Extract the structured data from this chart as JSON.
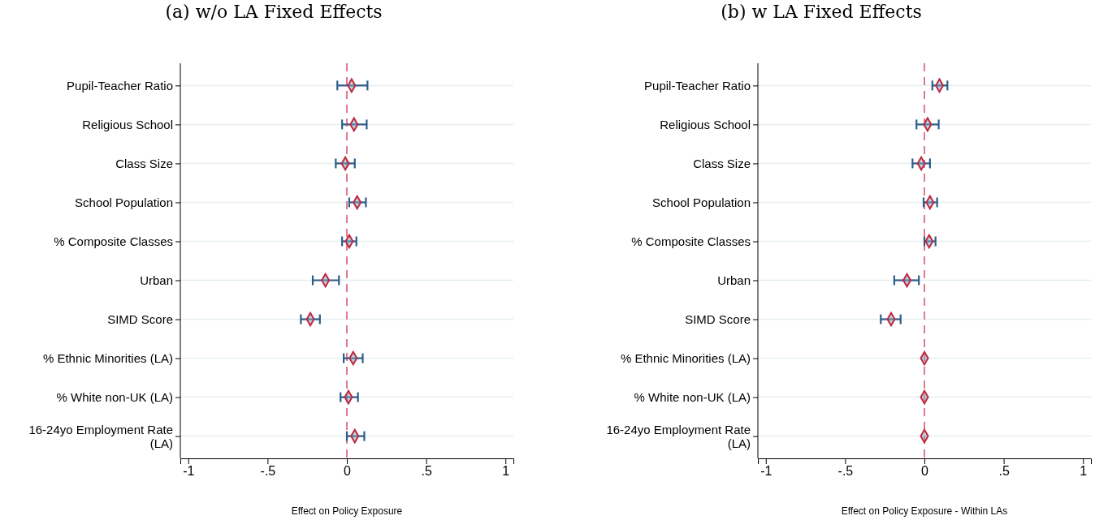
{
  "chart_data": [
    {
      "type": "scatter",
      "orientation": "horizontal",
      "title": "(a) w/o LA Fixed Effects",
      "xlabel": "Effect on Policy Exposure",
      "categories": [
        "Pupil-Teacher Ratio",
        "Religious School",
        "Class Size",
        "School Population",
        "% Composite Classes",
        "Urban",
        "SIMD Score",
        "% Ethnic Minorities (LA)",
        "% White non-UK (LA)",
        "16-24yo Employment Rate (LA)"
      ],
      "values": [
        0.03,
        0.045,
        -0.01,
        0.065,
        0.015,
        -0.135,
        -0.23,
        0.04,
        0.01,
        0.05
      ],
      "errors": [
        [
          -0.06,
          0.13
        ],
        [
          -0.03,
          0.125
        ],
        [
          -0.07,
          0.05
        ],
        [
          0.015,
          0.12
        ],
        [
          -0.03,
          0.06
        ],
        [
          -0.215,
          -0.05
        ],
        [
          -0.29,
          -0.17
        ],
        [
          -0.02,
          0.1
        ],
        [
          -0.04,
          0.07
        ],
        [
          0,
          0.11
        ]
      ],
      "color": "#c0283c",
      "marker": "diamond",
      "grid": "y",
      "xlim": [
        -1.05,
        1.05
      ],
      "xticks": [
        {
          "value": -1,
          "label": "-1"
        },
        {
          "value": -0.5,
          "label": "-.5"
        },
        {
          "value": 0,
          "label": "0"
        },
        {
          "value": 0.5,
          "label": ".5"
        },
        {
          "value": 1,
          "label": "1"
        }
      ],
      "ref_lines": [
        {
          "axis": "x",
          "value": 0,
          "color": "#e07a92",
          "line_style": "dashed"
        }
      ]
    },
    {
      "type": "scatter",
      "orientation": "horizontal",
      "title": "(b) w LA Fixed Effects",
      "xlabel": "Effect on Policy Exposure - Within LAs",
      "categories": [
        "Pupil-Teacher Ratio",
        "Religious School",
        "Class Size",
        "School Population",
        "% Composite Classes",
        "Urban",
        "SIMD Score",
        "% Ethnic Minorities (LA)",
        "% White non-UK (LA)",
        "16-24yo Employment Rate (LA)"
      ],
      "values": [
        0.095,
        0.02,
        -0.02,
        0.035,
        0.03,
        -0.11,
        -0.21,
        0,
        0,
        0
      ],
      "errors": [
        [
          0.05,
          0.145
        ],
        [
          -0.05,
          0.09
        ],
        [
          -0.075,
          0.035
        ],
        [
          -0.005,
          0.08
        ],
        [
          0,
          0.07
        ],
        [
          -0.19,
          -0.035
        ],
        [
          -0.275,
          -0.15
        ],
        null,
        null,
        null
      ],
      "color": "#c0283c",
      "marker": "diamond",
      "grid": "y",
      "xlim": [
        -1.05,
        1.05
      ],
      "xticks": [
        {
          "value": -1,
          "label": "-1"
        },
        {
          "value": -0.5,
          "label": "-.5"
        },
        {
          "value": 0,
          "label": "0"
        },
        {
          "value": 0.5,
          "label": ".5"
        },
        {
          "value": 1,
          "label": "1"
        }
      ],
      "ref_lines": [
        {
          "axis": "x",
          "value": 0,
          "color": "#e07a92",
          "line_style": "dashed"
        }
      ]
    }
  ]
}
